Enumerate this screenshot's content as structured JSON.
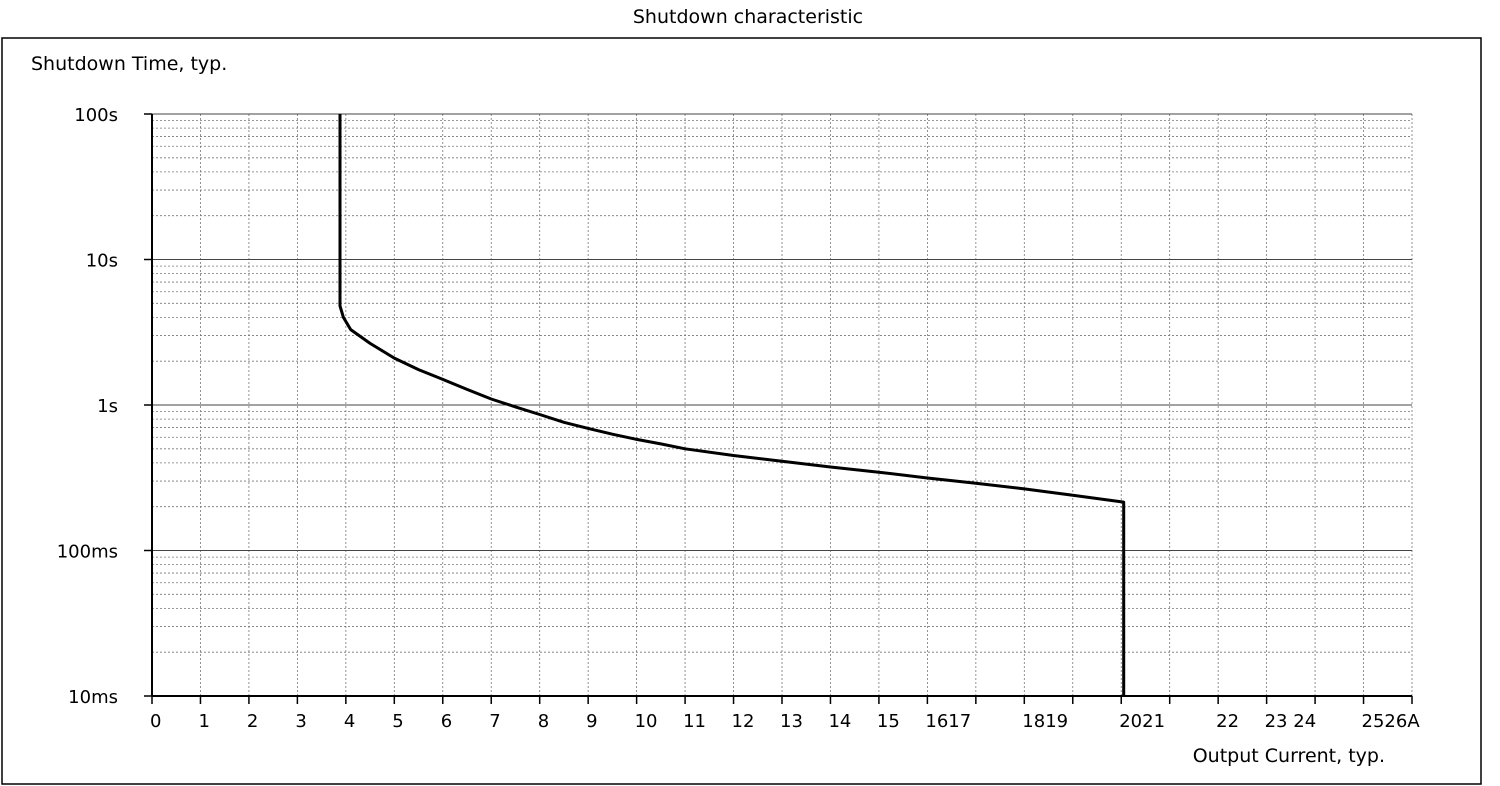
{
  "chart_data": {
    "type": "line",
    "title": "Shutdown characteristic",
    "xlabel": "Output Current, typ.",
    "ylabel": "Shutdown Time, typ.",
    "xlim": [
      0,
      26
    ],
    "ylim": [
      0.01,
      100
    ],
    "y_scale": "log",
    "grid": true,
    "x_tick_labels": [
      {
        "v": 0,
        "t": "0"
      },
      {
        "v": 1,
        "t": "1"
      },
      {
        "v": 2,
        "t": "2"
      },
      {
        "v": 3,
        "t": "3"
      },
      {
        "v": 4,
        "t": "4"
      },
      {
        "v": 5,
        "t": "5"
      },
      {
        "v": 6,
        "t": "6"
      },
      {
        "v": 7,
        "t": "7"
      },
      {
        "v": 8,
        "t": "8"
      },
      {
        "v": 9,
        "t": "9"
      },
      {
        "v": 10,
        "t": "10"
      },
      {
        "v": 11,
        "t": "11"
      },
      {
        "v": 12,
        "t": "12"
      },
      {
        "v": 13,
        "t": "13"
      },
      {
        "v": 14,
        "t": "14"
      },
      {
        "v": 15,
        "t": "15"
      },
      {
        "v": 16,
        "t": "1617"
      },
      {
        "v": 18,
        "t": "1819"
      },
      {
        "v": 20,
        "t": "2021"
      },
      {
        "v": 22,
        "t": "22"
      },
      {
        "v": 23,
        "t": "23 24"
      },
      {
        "v": 25,
        "t": "2526A"
      }
    ],
    "y_tick_labels": [
      {
        "v": 100,
        "t": "100s"
      },
      {
        "v": 10,
        "t": "10s"
      },
      {
        "v": 1,
        "t": "1s"
      },
      {
        "v": 0.1,
        "t": "100ms"
      },
      {
        "v": 0.01,
        "t": "10ms"
      }
    ],
    "series": [
      {
        "color": "#000000",
        "points": [
          [
            3.88,
            100
          ],
          [
            3.88,
            4.8
          ],
          [
            3.95,
            4.0
          ],
          [
            4.1,
            3.3
          ],
          [
            4.5,
            2.65
          ],
          [
            5,
            2.1
          ],
          [
            5.5,
            1.75
          ],
          [
            6,
            1.5
          ],
          [
            6.5,
            1.28
          ],
          [
            7,
            1.1
          ],
          [
            7.5,
            0.97
          ],
          [
            8,
            0.86
          ],
          [
            8.5,
            0.76
          ],
          [
            9,
            0.69
          ],
          [
            9.5,
            0.63
          ],
          [
            10,
            0.58
          ],
          [
            10.5,
            0.54
          ],
          [
            11,
            0.5
          ],
          [
            12,
            0.45
          ],
          [
            13,
            0.41
          ],
          [
            14,
            0.375
          ],
          [
            15,
            0.345
          ],
          [
            16,
            0.315
          ],
          [
            17,
            0.29
          ],
          [
            18,
            0.265
          ],
          [
            19,
            0.24
          ],
          [
            20.05,
            0.215
          ],
          [
            20.05,
            0.01
          ]
        ]
      }
    ]
  }
}
